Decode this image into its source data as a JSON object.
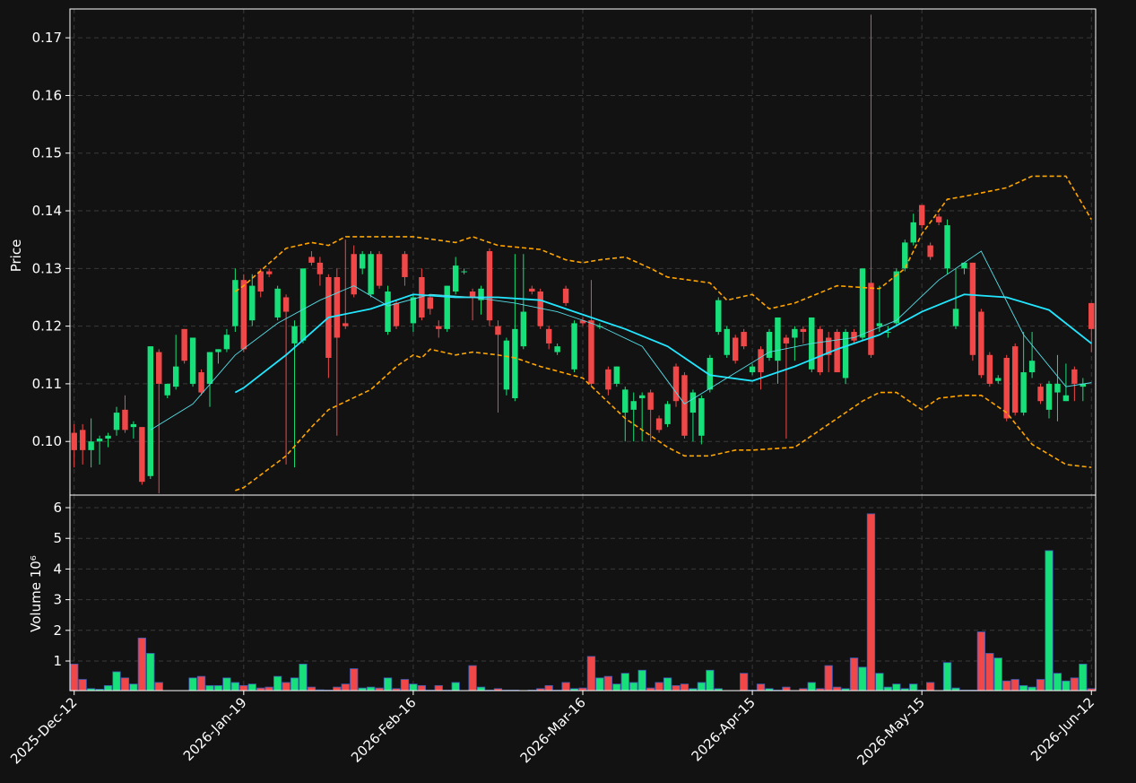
{
  "chart_data": {
    "type": "candlestick",
    "ylabel": "Price",
    "categories": [
      "2025-Dec-12",
      null,
      null,
      null,
      null,
      null,
      null,
      null,
      null,
      null,
      null,
      null,
      null,
      null,
      null,
      null,
      null,
      null,
      null,
      null,
      "2026-Jan-19",
      null,
      null,
      null,
      null,
      null,
      null,
      null,
      null,
      null,
      null,
      null,
      null,
      null,
      null,
      null,
      null,
      null,
      null,
      null,
      "2026-Feb-16",
      null,
      null,
      null,
      null,
      null,
      null,
      null,
      null,
      null,
      null,
      null,
      null,
      null,
      null,
      null,
      null,
      null,
      null,
      null,
      "2026-Mar-16",
      null,
      null,
      null,
      null,
      null,
      null,
      null,
      null,
      null,
      null,
      null,
      null,
      null,
      null,
      null,
      null,
      null,
      null,
      null,
      "2026-Apr-15",
      null,
      null,
      null,
      null,
      null,
      null,
      null,
      null,
      null,
      null,
      null,
      null,
      null,
      null,
      null,
      null,
      null,
      null,
      null,
      "2026-May-15",
      null,
      null,
      null,
      null,
      null,
      null,
      null,
      null,
      null,
      null,
      null,
      null,
      null,
      null,
      null,
      null,
      null,
      null,
      null,
      "2026-Jun-12"
    ],
    "open": [
      0.1015,
      0.102,
      0.0985,
      0.1,
      0.1005,
      0.102,
      0.1055,
      0.1025,
      0.1025,
      0.094,
      0.1155,
      0.108,
      0.1095,
      0.1195,
      0.11,
      0.112,
      0.11,
      0.1155,
      0.116,
      0.12,
      0.128,
      0.121,
      0.1295,
      0.1295,
      0.1215,
      0.125,
      0.117,
      0.1175,
      0.132,
      0.131,
      0.1285,
      0.1285,
      0.1205,
      0.1325,
      0.13,
      0.1255,
      0.1325,
      0.119,
      0.124,
      0.1325,
      0.1205,
      0.1285,
      0.125,
      0.12,
      0.1195,
      0.126,
      0.1295,
      0.126,
      0.1245,
      0.133,
      0.12,
      0.109,
      0.1075,
      0.1165,
      0.1265,
      0.126,
      0.1195,
      0.1155,
      0.1265,
      0.1125,
      0.121,
      0.121,
      0.12,
      0.1125,
      0.11,
      0.105,
      0.1055,
      0.1075,
      0.1085,
      0.104,
      0.103,
      0.113,
      0.1115,
      0.105,
      0.101,
      0.109,
      0.119,
      0.115,
      0.118,
      0.119,
      0.112,
      0.116,
      0.1145,
      0.114,
      0.118,
      0.118,
      0.1195,
      0.1125,
      0.1195,
      0.118,
      0.119,
      0.111,
      0.119,
      0.118,
      0.1275,
      0.12,
      0.119,
      0.1205,
      0.13,
      0.1345,
      0.141,
      0.134,
      0.139,
      0.13,
      0.12,
      0.13,
      0.131,
      0.1225,
      0.115,
      0.1105,
      0.1145,
      0.1165,
      0.105,
      0.112,
      0.1095,
      0.1055,
      0.1085,
      0.107,
      0.1125,
      0.1095,
      0.124
    ],
    "high": [
      0.103,
      0.103,
      0.104,
      0.101,
      0.1015,
      0.106,
      0.108,
      0.1035,
      0.1025,
      0.1165,
      0.116,
      0.11,
      0.1185,
      0.1195,
      0.118,
      0.1125,
      0.1155,
      0.116,
      0.1195,
      0.13,
      0.129,
      0.129,
      0.13,
      0.13,
      0.127,
      0.1255,
      0.121,
      0.13,
      0.133,
      0.132,
      0.129,
      0.13,
      0.135,
      0.134,
      0.133,
      0.133,
      0.133,
      0.127,
      0.1245,
      0.133,
      0.1255,
      0.13,
      0.1255,
      0.121,
      0.127,
      0.132,
      0.13,
      0.1265,
      0.127,
      0.1335,
      0.121,
      0.118,
      0.1325,
      0.1325,
      0.127,
      0.1265,
      0.12,
      0.117,
      0.127,
      0.121,
      0.1215,
      0.128,
      0.1205,
      0.113,
      0.113,
      0.1095,
      0.1085,
      0.1085,
      0.109,
      0.1045,
      0.107,
      0.1135,
      0.112,
      0.109,
      0.108,
      0.115,
      0.125,
      0.12,
      0.1185,
      0.1195,
      0.1135,
      0.1165,
      0.1195,
      0.1215,
      0.1185,
      0.12,
      0.12,
      0.1215,
      0.12,
      0.119,
      0.1195,
      0.1195,
      0.1195,
      0.13,
      0.174,
      0.127,
      0.12,
      0.13,
      0.135,
      0.1395,
      0.141,
      0.1345,
      0.1395,
      0.1385,
      0.13,
      0.131,
      0.131,
      0.123,
      0.1155,
      0.1115,
      0.115,
      0.117,
      0.119,
      0.119,
      0.11,
      0.1105,
      0.115,
      0.1135,
      0.113,
      0.111,
      0.124
    ],
    "low": [
      0.0955,
      0.096,
      0.0955,
      0.096,
      0.099,
      0.101,
      0.1015,
      0.1005,
      0.0925,
      0.0935,
      0.091,
      0.1075,
      0.109,
      0.1135,
      0.1095,
      0.108,
      0.106,
      0.1135,
      0.1155,
      0.119,
      0.1155,
      0.12,
      0.125,
      0.1285,
      0.121,
      0.096,
      0.0955,
      0.117,
      0.1305,
      0.127,
      0.111,
      0.101,
      0.1195,
      0.125,
      0.129,
      0.125,
      0.1265,
      0.1185,
      0.1195,
      0.127,
      0.119,
      0.121,
      0.122,
      0.118,
      0.119,
      0.1255,
      0.129,
      0.121,
      0.122,
      0.12,
      0.105,
      0.108,
      0.107,
      0.116,
      0.1255,
      0.1195,
      0.116,
      0.115,
      0.1235,
      0.112,
      0.12,
      0.1095,
      0.1195,
      0.108,
      0.1095,
      0.1,
      0.1,
      0.1,
      0.1,
      0.1015,
      0.1025,
      0.106,
      0.1005,
      0.1,
      0.0995,
      0.1085,
      0.1185,
      0.1145,
      0.1135,
      0.116,
      0.1115,
      0.109,
      0.114,
      0.11,
      0.1005,
      0.114,
      0.117,
      0.112,
      0.1115,
      0.112,
      0.112,
      0.11,
      0.117,
      0.1175,
      0.1145,
      0.119,
      0.118,
      0.12,
      0.1295,
      0.134,
      0.137,
      0.1315,
      0.1375,
      0.129,
      0.1195,
      0.129,
      0.114,
      0.111,
      0.1095,
      0.11,
      0.1035,
      0.1045,
      0.1045,
      0.111,
      0.1065,
      0.104,
      0.1035,
      0.107,
      0.107,
      0.107,
      0.1155
    ],
    "close": [
      0.0985,
      0.0985,
      0.1,
      0.1005,
      0.101,
      0.105,
      0.102,
      0.103,
      0.093,
      0.1165,
      0.11,
      0.11,
      0.113,
      0.114,
      0.118,
      0.1085,
      0.1155,
      0.116,
      0.1185,
      0.128,
      0.116,
      0.127,
      0.126,
      0.129,
      0.1265,
      0.1225,
      0.12,
      0.13,
      0.131,
      0.129,
      0.1145,
      0.118,
      0.12,
      0.1255,
      0.1325,
      0.1325,
      0.127,
      0.126,
      0.12,
      0.1285,
      0.125,
      0.1215,
      0.123,
      0.1195,
      0.127,
      0.1305,
      0.1295,
      0.125,
      0.1265,
      0.121,
      0.1185,
      0.1175,
      0.1195,
      0.1225,
      0.126,
      0.12,
      0.117,
      0.1165,
      0.124,
      0.1205,
      0.1205,
      0.11,
      0.12,
      0.109,
      0.113,
      0.109,
      0.107,
      0.108,
      0.1055,
      0.102,
      0.1065,
      0.107,
      0.101,
      0.1085,
      0.1075,
      0.1145,
      0.1245,
      0.1195,
      0.114,
      0.1165,
      0.113,
      0.112,
      0.119,
      0.1215,
      0.117,
      0.1195,
      0.119,
      0.1215,
      0.112,
      0.115,
      0.112,
      0.119,
      0.1175,
      0.13,
      0.115,
      0.1205,
      0.119,
      0.1295,
      0.1345,
      0.138,
      0.1375,
      0.132,
      0.138,
      0.1375,
      0.123,
      0.131,
      0.115,
      0.1115,
      0.11,
      0.111,
      0.104,
      0.105,
      0.112,
      0.114,
      0.107,
      0.11,
      0.11,
      0.108,
      0.11,
      0.11,
      0.1195
    ],
    "up_color": "#17e07a",
    "down_color": "#f04848",
    "ylim": [
      0.0907,
      0.175
    ],
    "yticks": [
      {
        "value": 0.1,
        "label": "0.10"
      },
      0.11,
      0.12,
      0.13,
      0.14,
      0.15,
      0.16,
      0.17
    ],
    "grid": true,
    "overlays": [
      {
        "color": "#ffa500",
        "dash": true,
        "width": 1.6,
        "x": [
          19,
          20,
          25,
          28,
          30,
          32,
          35,
          40,
          45,
          47,
          50,
          55,
          58,
          60,
          62,
          65,
          68,
          70,
          75,
          77,
          80,
          82,
          85,
          90,
          95,
          98,
          100,
          103,
          105,
          110,
          113,
          117,
          120
        ],
        "values": [
          0.126,
          0.127,
          0.1335,
          0.1345,
          0.134,
          0.1355,
          0.1355,
          0.1355,
          0.1345,
          0.1355,
          0.134,
          0.1333,
          0.1315,
          0.131,
          0.1315,
          0.132,
          0.13,
          0.1285,
          0.1275,
          0.1245,
          0.1255,
          0.123,
          0.124,
          0.127,
          0.1265,
          0.13,
          0.136,
          0.142,
          0.1425,
          0.144,
          0.146,
          0.146,
          0.1385
        ]
      },
      {
        "color": "#ffa500",
        "dash": true,
        "width": 1.6,
        "x": [
          19,
          20,
          25,
          28,
          30,
          35,
          38,
          40,
          41,
          42,
          45,
          47,
          50,
          52,
          55,
          60,
          65,
          70,
          72,
          75,
          78,
          80,
          85,
          88,
          90,
          93,
          95,
          97,
          100,
          102,
          105,
          107,
          110,
          113,
          117,
          120
        ],
        "values": [
          0.0915,
          0.092,
          0.0975,
          0.1025,
          0.1055,
          0.109,
          0.113,
          0.115,
          0.1145,
          0.116,
          0.115,
          0.1155,
          0.115,
          0.1145,
          0.113,
          0.111,
          0.104,
          0.099,
          0.0975,
          0.0975,
          0.0985,
          0.0985,
          0.099,
          0.102,
          0.104,
          0.107,
          0.1085,
          0.1085,
          0.1055,
          0.1075,
          0.108,
          0.108,
          0.105,
          0.0995,
          0.096,
          0.0955
        ]
      },
      {
        "color": "#22e6ff",
        "dash": false,
        "width": 1.8,
        "x": [
          19,
          20,
          25,
          30,
          35,
          40,
          45,
          50,
          55,
          60,
          65,
          70,
          75,
          80,
          85,
          90,
          95,
          100,
          105,
          110,
          115,
          120
        ],
        "values": [
          0.1085,
          0.1093,
          0.115,
          0.1215,
          0.123,
          0.1255,
          0.125,
          0.125,
          0.1245,
          0.122,
          0.1195,
          0.1165,
          0.1115,
          0.1105,
          0.113,
          0.116,
          0.1185,
          0.1225,
          0.1255,
          0.125,
          0.1228,
          0.117
        ]
      },
      {
        "color": "#55dde6",
        "dash": false,
        "width": 0.9,
        "x": [
          9,
          14,
          19,
          24,
          29,
          33,
          37,
          42,
          47,
          52,
          57,
          62,
          67,
          72,
          77,
          82,
          87,
          92,
          97,
          102,
          107,
          112,
          117,
          120
        ],
        "values": [
          0.102,
          0.1065,
          0.115,
          0.1205,
          0.1245,
          0.127,
          0.1235,
          0.1255,
          0.125,
          0.124,
          0.1225,
          0.12,
          0.1165,
          0.1065,
          0.111,
          0.1155,
          0.117,
          0.118,
          0.121,
          0.128,
          0.133,
          0.1185,
          0.1095,
          0.1102
        ]
      }
    ],
    "volume": {
      "ylabel": "Volume  10⁶",
      "edge_color": "#3b5bb5",
      "values": [
        0.9,
        0.4,
        0.1,
        0.08,
        0.2,
        0.65,
        0.45,
        0.25,
        1.75,
        1.25,
        0.3,
        0.02,
        0.03,
        0.02,
        0.45,
        0.5,
        0.2,
        0.2,
        0.45,
        0.3,
        0.2,
        0.25,
        0.12,
        0.15,
        0.5,
        0.3,
        0.45,
        0.9,
        0.15,
        0.06,
        0.05,
        0.15,
        0.25,
        0.75,
        0.12,
        0.15,
        0.12,
        0.45,
        0.1,
        0.4,
        0.25,
        0.2,
        0.05,
        0.2,
        0.05,
        0.3,
        0.03,
        0.85,
        0.15,
        0.05,
        0.1,
        0.05,
        0.05,
        0.03,
        0.05,
        0.1,
        0.2,
        0.05,
        0.3,
        0.1,
        0.12,
        1.15,
        0.45,
        0.5,
        0.25,
        0.6,
        0.3,
        0.7,
        0.12,
        0.3,
        0.45,
        0.2,
        0.25,
        0.1,
        0.3,
        0.7,
        0.1,
        0.03,
        0.03,
        0.6,
        0.05,
        0.25,
        0.1,
        0.05,
        0.15,
        0.02,
        0.1,
        0.3,
        0.1,
        0.85,
        0.15,
        0.1,
        1.1,
        0.8,
        5.8,
        0.6,
        0.15,
        0.25,
        0.1,
        0.25,
        0.05,
        0.3,
        0.03,
        0.95,
        0.12,
        0.05,
        0.05,
        1.95,
        1.25,
        1.1,
        0.35,
        0.4,
        0.2,
        0.15,
        0.4,
        4.6,
        0.6,
        0.35,
        0.45,
        0.9,
        0.1
      ],
      "ylim": [
        0.035,
        6.41
      ],
      "yticks": [
        1,
        2,
        3,
        4,
        5,
        6
      ]
    }
  }
}
